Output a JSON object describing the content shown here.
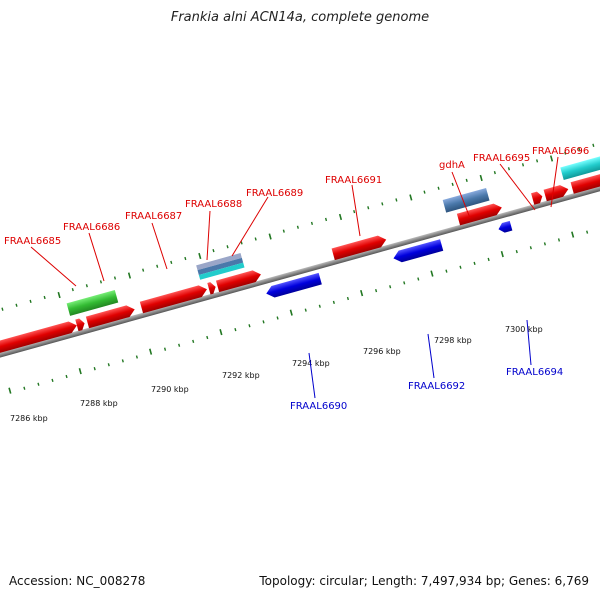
{
  "title": "Frankia alni ACN14a, complete genome",
  "footer": {
    "accession": "Accession: NC_008278",
    "summary": "Topology: circular; Length: 7,497,934 bp; Genes: 6,769"
  },
  "colors": {
    "forward": "#dd0000",
    "reverse": "#0000cc",
    "backbone": "#888888",
    "tick": "#227722"
  },
  "ruler": {
    "labels": [
      "7286 kbp",
      "7288 kbp",
      "7290 kbp",
      "7292 kbp",
      "7294 kbp",
      "7296 kbp",
      "7298 kbp",
      "7300 kbp"
    ]
  },
  "gene_labels": {
    "forward": [
      "FRAAL6685",
      "FRAAL6686",
      "FRAAL6687",
      "FRAAL6688",
      "FRAAL6689",
      "FRAAL6691",
      "gdhA",
      "FRAAL6695",
      "FRAAL6696"
    ],
    "reverse": [
      "FRAAL6690",
      "FRAAL6692",
      "FRAAL6694"
    ]
  }
}
